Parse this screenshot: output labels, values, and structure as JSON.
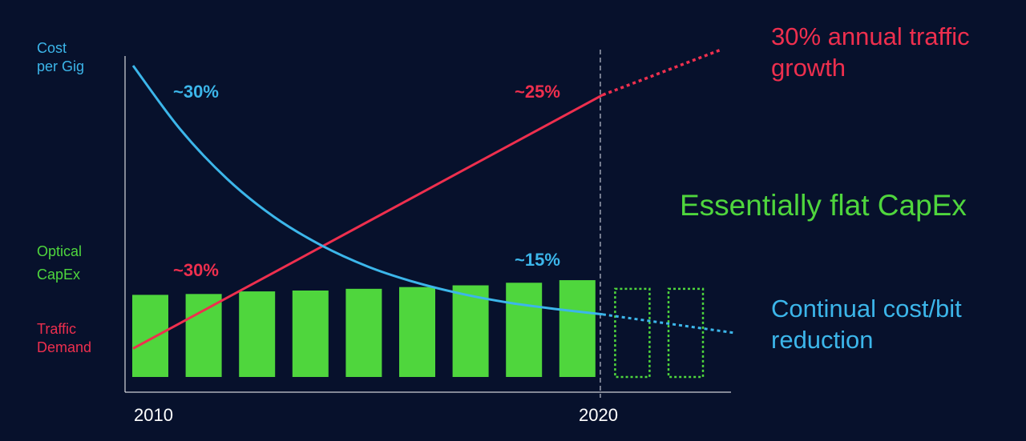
{
  "chart_data": {
    "type": "bar",
    "x_ticks": [
      "2010",
      "2020"
    ],
    "y_labels": {
      "cost": [
        "Cost",
        "per Gig"
      ],
      "capex": [
        "Optical",
        "CapEx"
      ],
      "traffic": [
        "Traffic",
        "Demand"
      ]
    },
    "bars": {
      "name": "Optical CapEx",
      "actual_values": [
        95,
        96,
        99,
        100,
        102,
        104,
        106,
        109,
        112
      ],
      "projected_values": [
        102,
        102
      ]
    },
    "traffic_line": {
      "name": "Traffic Demand",
      "actual": [
        [
          0,
          60
        ],
        [
          1,
          112
        ],
        [
          2,
          164
        ],
        [
          3,
          216
        ],
        [
          4,
          268
        ],
        [
          5,
          320
        ],
        [
          6,
          372
        ],
        [
          7,
          424
        ],
        [
          8,
          476
        ],
        [
          9,
          528
        ],
        [
          10,
          580
        ]
      ],
      "projected": [
        [
          10,
          580
        ],
        [
          12.5,
          672
        ]
      ]
    },
    "cost_line": {
      "name": "Cost per Gig",
      "actual": [
        [
          0,
          640
        ],
        [
          1,
          510
        ],
        [
          2,
          408
        ],
        [
          3,
          330
        ],
        [
          4,
          272
        ],
        [
          5,
          228
        ],
        [
          6,
          196
        ],
        [
          7,
          172
        ],
        [
          8,
          154
        ],
        [
          9,
          141
        ],
        [
          10,
          130
        ]
      ],
      "projected": [
        [
          10,
          130
        ],
        [
          12.8,
          92
        ]
      ]
    },
    "x_range": [
      0,
      12.8
    ],
    "y_range": [
      0,
      640
    ],
    "divider_at": 10,
    "colors": {
      "bars": "#4fd63d",
      "traffic": "#ee2f4e",
      "cost": "#3cb6ea",
      "axis": "#ffffff"
    }
  },
  "annotations": {
    "cost_start": "~30%",
    "cost_end": "~15%",
    "traffic_start": "~30%",
    "traffic_end": "~25%"
  },
  "callouts": {
    "traffic_growth": [
      "30% annual traffic",
      "growth"
    ],
    "flat_capex": "Essentially flat CapEx",
    "cost_reduction": [
      "Continual cost/bit",
      "reduction"
    ]
  }
}
